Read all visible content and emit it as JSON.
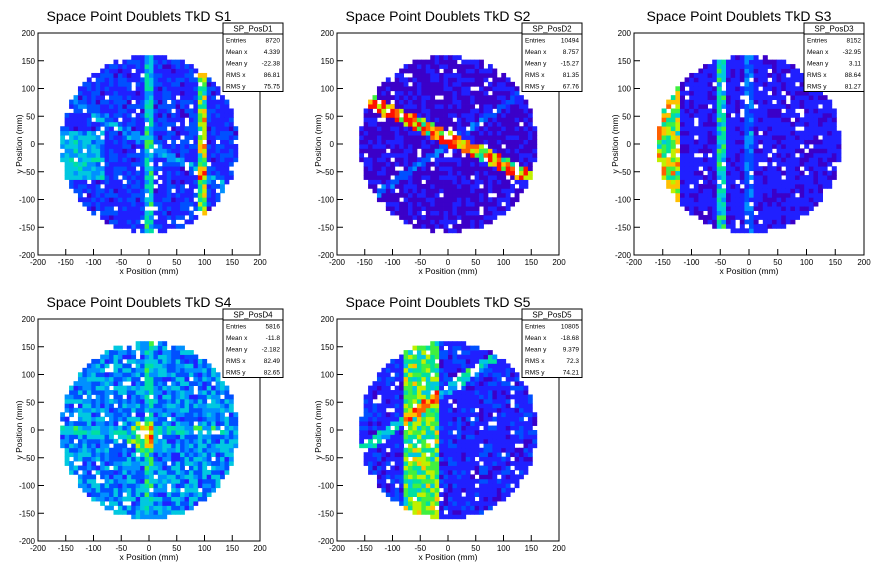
{
  "chart_data": [
    {
      "type": "heatmap",
      "title": "Space Point Doublets TkD S1",
      "xlabel": "x Position (mm)",
      "ylabel": "y Position (mm)",
      "xlim": [
        -200,
        200
      ],
      "ylim": [
        -200,
        200
      ],
      "xticks": [
        -200,
        -150,
        -100,
        -50,
        0,
        50,
        100,
        150,
        200
      ],
      "yticks": [
        -200,
        -150,
        -100,
        -50,
        0,
        50,
        100,
        150,
        200
      ],
      "stats": {
        "name": "SP_PosD1",
        "rows": [
          {
            "label": "Entries",
            "value": "8720"
          },
          {
            "label": "Mean x",
            "value": "4.339"
          },
          {
            "label": "Mean y",
            "value": "-22.38"
          },
          {
            "label": "RMS x",
            "value": "86.81"
          },
          {
            "label": "RMS y",
            "value": "75.75"
          }
        ]
      },
      "disk_radius": 160,
      "bin_size": 8,
      "base_density": 0.16,
      "streaks": [
        {
          "type": "vline",
          "x": 95,
          "width": 10,
          "strength": 0.55
        },
        {
          "type": "vline",
          "x": 0,
          "width": 6,
          "strength": 0.28
        },
        {
          "type": "band",
          "y0": -60,
          "y1": 20,
          "xmax": -80,
          "strength": 0.22
        },
        {
          "type": "line",
          "angle": -30,
          "offset": 0,
          "width": 8,
          "strength": 0.15
        }
      ]
    },
    {
      "type": "heatmap",
      "title": "Space Point Doublets TkD S2",
      "xlabel": "x Position (mm)",
      "ylabel": "y Position (mm)",
      "xlim": [
        -200,
        200
      ],
      "ylim": [
        -200,
        200
      ],
      "xticks": [
        -200,
        -150,
        -100,
        -50,
        0,
        50,
        100,
        150,
        200
      ],
      "yticks": [
        -200,
        -150,
        -100,
        -50,
        0,
        50,
        100,
        150,
        200
      ],
      "stats": {
        "name": "SP_PosD2",
        "rows": [
          {
            "label": "Entries",
            "value": "10494"
          },
          {
            "label": "Mean x",
            "value": "8.757"
          },
          {
            "label": "Mean y",
            "value": "-15.27"
          },
          {
            "label": "RMS x",
            "value": "81.35"
          },
          {
            "label": "RMS y",
            "value": "67.76"
          }
        ]
      },
      "disk_radius": 160,
      "bin_size": 8,
      "base_density": 0.08,
      "streaks": [
        {
          "type": "line",
          "angle": -25,
          "offset": 10,
          "width": 12,
          "strength": 0.75
        },
        {
          "type": "line",
          "angle": 35,
          "offset": 0,
          "width": 6,
          "strength": 0.18
        }
      ]
    },
    {
      "type": "heatmap",
      "title": "Space Point Doublets TkD S3",
      "xlabel": "x Position (mm)",
      "ylabel": "y Position (mm)",
      "xlim": [
        -200,
        200
      ],
      "ylim": [
        -200,
        200
      ],
      "xticks": [
        -200,
        -150,
        -100,
        -50,
        0,
        50,
        100,
        150,
        200
      ],
      "yticks": [
        -200,
        -150,
        -100,
        -50,
        0,
        50,
        100,
        150,
        200
      ],
      "stats": {
        "name": "SP_PosD3",
        "rows": [
          {
            "label": "Entries",
            "value": "8152"
          },
          {
            "label": "Mean x",
            "value": "-32.95"
          },
          {
            "label": "Mean y",
            "value": "3.11"
          },
          {
            "label": "RMS x",
            "value": "88.64"
          },
          {
            "label": "RMS y",
            "value": "81.27"
          }
        ]
      },
      "disk_radius": 160,
      "bin_size": 8,
      "base_density": 0.12,
      "streaks": [
        {
          "type": "band",
          "x0": -160,
          "x1": -120,
          "strength": 0.55
        },
        {
          "type": "vline",
          "x": -50,
          "width": 6,
          "strength": 0.35
        },
        {
          "type": "vline",
          "x": 0,
          "width": 5,
          "strength": 0.15
        }
      ]
    },
    {
      "type": "heatmap",
      "title": "Space Point Doublets TkD S4",
      "xlabel": "x Position (mm)",
      "ylabel": "y Position (mm)",
      "xlim": [
        -200,
        200
      ],
      "ylim": [
        -200,
        200
      ],
      "xticks": [
        -200,
        -150,
        -100,
        -50,
        0,
        50,
        100,
        150,
        200
      ],
      "yticks": [
        -200,
        -150,
        -100,
        -50,
        0,
        50,
        100,
        150,
        200
      ],
      "stats": {
        "name": "SP_PosD4",
        "rows": [
          {
            "label": "Entries",
            "value": "5816"
          },
          {
            "label": "Mean x",
            "value": "-11.8"
          },
          {
            "label": "Mean y",
            "value": "-2.182"
          },
          {
            "label": "RMS x",
            "value": "82.49"
          },
          {
            "label": "RMS y",
            "value": "82.65"
          }
        ]
      },
      "disk_radius": 160,
      "bin_size": 8,
      "base_density": 0.3,
      "streaks": [
        {
          "type": "spot",
          "x": -10,
          "y": -10,
          "r": 30,
          "strength": 0.45
        },
        {
          "type": "vline",
          "x": 0,
          "width": 6,
          "strength": 0.15
        },
        {
          "type": "hline",
          "y": 0,
          "width": 6,
          "strength": 0.12
        }
      ]
    },
    {
      "type": "heatmap",
      "title": "Space Point Doublets TkD S5",
      "xlabel": "x Position (mm)",
      "ylabel": "y Position (mm)",
      "xlim": [
        -200,
        200
      ],
      "ylim": [
        -200,
        200
      ],
      "xticks": [
        -200,
        -150,
        -100,
        -50,
        0,
        50,
        100,
        150,
        200
      ],
      "yticks": [
        -200,
        -150,
        -100,
        -50,
        0,
        50,
        100,
        150,
        200
      ],
      "stats": {
        "name": "SP_PosD5",
        "rows": [
          {
            "label": "Entries",
            "value": "10805"
          },
          {
            "label": "Mean x",
            "value": "-18.68"
          },
          {
            "label": "Mean y",
            "value": "9.379"
          },
          {
            "label": "RMS x",
            "value": "72.3"
          },
          {
            "label": "RMS y",
            "value": "74.21"
          }
        ]
      },
      "disk_radius": 160,
      "bin_size": 8,
      "base_density": 0.14,
      "streaks": [
        {
          "type": "band",
          "x0": -80,
          "x1": -20,
          "strength": 0.45
        },
        {
          "type": "line",
          "angle": 35,
          "offset": 60,
          "width": 8,
          "strength": 0.3
        }
      ]
    }
  ],
  "colors": {
    "palette": [
      "#3b00c8",
      "#2020ff",
      "#0050ff",
      "#0090ff",
      "#00c8e0",
      "#00e0a0",
      "#40f040",
      "#c0f000",
      "#ffc000",
      "#ff6000",
      "#ff1000"
    ]
  }
}
